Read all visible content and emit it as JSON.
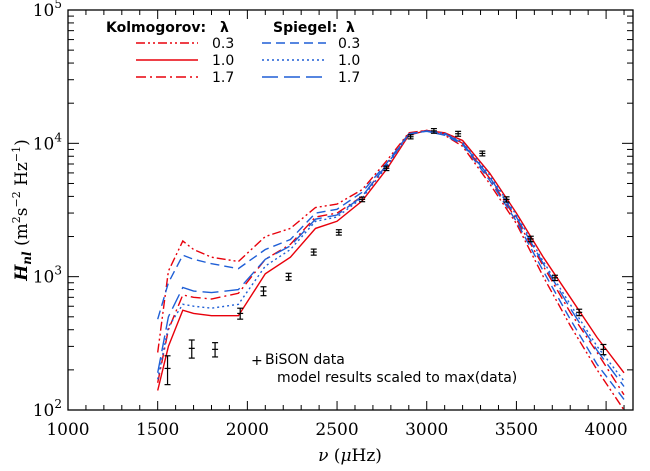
{
  "chart_data": {
    "type": "line",
    "title": "",
    "xlabel": {
      "symbol": "ν",
      "unit_open": " (",
      "unit_mu": "μ",
      "unit_rest": "Hz)"
    },
    "ylabel": {
      "base": "H",
      "sub": "nl",
      "unit_open": " (m",
      "sup1": "2",
      "mid": "s",
      "sup2": "−2",
      "mid2": " Hz",
      "sup3": "−1",
      "close": ")"
    },
    "xlim": [
      1000,
      4150
    ],
    "ylim": [
      100,
      100000
    ],
    "yscale": "log",
    "xticks": [
      "1000",
      "1500",
      "2000",
      "2500",
      "3000",
      "3500",
      "4000"
    ],
    "yticks": [
      {
        "value": 100,
        "base": "10",
        "exp": "2"
      },
      {
        "value": 1000,
        "base": "10",
        "exp": "3"
      },
      {
        "value": 10000,
        "base": "10",
        "exp": "4"
      },
      {
        "value": 100000,
        "base": "10",
        "exp": "5"
      }
    ],
    "legend": {
      "placement": "top-left",
      "kolmogorov_title": "Kolmogorov:",
      "spiegel_title": "Spiegel:",
      "lambda_header": "λ"
    },
    "series": [
      {
        "group": "Kolmogorov",
        "lambda": "0.3",
        "color": "#e8000b",
        "dash": "dashdotdot",
        "x": [
          1500,
          1560,
          1640,
          1700,
          1800,
          1950,
          2100,
          2240,
          2380,
          2500,
          2640,
          2780,
          2900,
          3000,
          3100,
          3200,
          3350,
          3500,
          3650,
          3800,
          3950,
          4100
        ],
        "y": [
          270,
          1100,
          1850,
          1600,
          1400,
          1300,
          2000,
          2300,
          3300,
          3500,
          4500,
          7500,
          12000,
          12500,
          11500,
          9500,
          5000,
          2500,
          1000,
          430,
          200,
          80
        ]
      },
      {
        "group": "Kolmogorov",
        "lambda": "1.0",
        "color": "#e8000b",
        "dash": "solid",
        "x": [
          1500,
          1560,
          1640,
          1700,
          1800,
          1950,
          2100,
          2240,
          2380,
          2500,
          2640,
          2780,
          2900,
          3000,
          3100,
          3200,
          3350,
          3500,
          3650,
          3800,
          3950,
          4100
        ],
        "y": [
          140,
          300,
          560,
          530,
          510,
          510,
          1050,
          1400,
          2300,
          2600,
          3700,
          6500,
          11500,
          12500,
          12000,
          10500,
          6000,
          3000,
          1400,
          700,
          350,
          190
        ]
      },
      {
        "group": "Kolmogorov",
        "lambda": "1.7",
        "color": "#e8000b",
        "dash": "dashdot",
        "x": [
          1500,
          1560,
          1640,
          1700,
          1800,
          1950,
          2100,
          2240,
          2380,
          2500,
          2640,
          2780,
          2900,
          3000,
          3100,
          3200,
          3350,
          3500,
          3650,
          3800,
          3950,
          4100
        ],
        "y": [
          160,
          400,
          730,
          700,
          680,
          750,
          1350,
          1750,
          2800,
          3000,
          4000,
          7000,
          11800,
          12500,
          11800,
          10000,
          5500,
          2700,
          1200,
          540,
          270,
          130
        ]
      },
      {
        "group": "Spiegel",
        "lambda": "0.3",
        "color": "#1f5fd6",
        "dash": "dashed",
        "x": [
          1500,
          1560,
          1640,
          1700,
          1800,
          1950,
          2100,
          2240,
          2380,
          2500,
          2640,
          2780,
          2900,
          3000,
          3100,
          3200,
          3350,
          3500,
          3650,
          3800,
          3950,
          4100
        ],
        "y": [
          480,
          900,
          1450,
          1350,
          1250,
          1150,
          1600,
          1900,
          3000,
          3200,
          4300,
          7200,
          11800,
          12300,
          11500,
          9800,
          5300,
          2600,
          1100,
          480,
          220,
          120
        ]
      },
      {
        "group": "Spiegel",
        "lambda": "1.0",
        "color": "#1f5fd6",
        "dash": "dotted",
        "x": [
          1500,
          1560,
          1640,
          1700,
          1800,
          1950,
          2100,
          2240,
          2380,
          2500,
          2640,
          2780,
          2900,
          3000,
          3100,
          3200,
          3350,
          3500,
          3650,
          3800,
          3950,
          4100
        ],
        "y": [
          170,
          420,
          620,
          600,
          580,
          620,
          1200,
          1600,
          2600,
          2800,
          3900,
          6800,
          11600,
          12400,
          11900,
          10200,
          5800,
          2900,
          1300,
          620,
          300,
          165
        ]
      },
      {
        "group": "Spiegel",
        "lambda": "1.7",
        "color": "#1f5fd6",
        "dash": "longdash",
        "x": [
          1500,
          1560,
          1640,
          1700,
          1800,
          1950,
          2100,
          2240,
          2380,
          2500,
          2640,
          2780,
          2900,
          3000,
          3100,
          3200,
          3350,
          3500,
          3650,
          3800,
          3950,
          4100
        ],
        "y": [
          190,
          500,
          830,
          780,
          760,
          800,
          1350,
          1700,
          2700,
          2900,
          4000,
          7000,
          11700,
          12400,
          11800,
          10000,
          5600,
          2800,
          1250,
          580,
          280,
          150
        ]
      }
    ],
    "data_points": {
      "name": "BiSON data",
      "x": [
        1555,
        1690,
        1820,
        1960,
        2090,
        2230,
        2370,
        2510,
        2640,
        2775,
        2910,
        3040,
        3175,
        3310,
        3445,
        3580,
        3715,
        3850,
        3985
      ],
      "y": [
        205,
        290,
        285,
        530,
        780,
        1000,
        1530,
        2150,
        3800,
        6500,
        11200,
        12400,
        11800,
        8400,
        3800,
        1920,
        980,
        540,
        285
      ],
      "yerr": [
        50,
        45,
        35,
        50,
        60,
        60,
        80,
        100,
        150,
        250,
        400,
        500,
        500,
        350,
        170,
        90,
        45,
        30,
        25
      ]
    },
    "annotations": {
      "data_label": "BiSON data",
      "scaling_note": "model results scaled to max(data)"
    }
  }
}
